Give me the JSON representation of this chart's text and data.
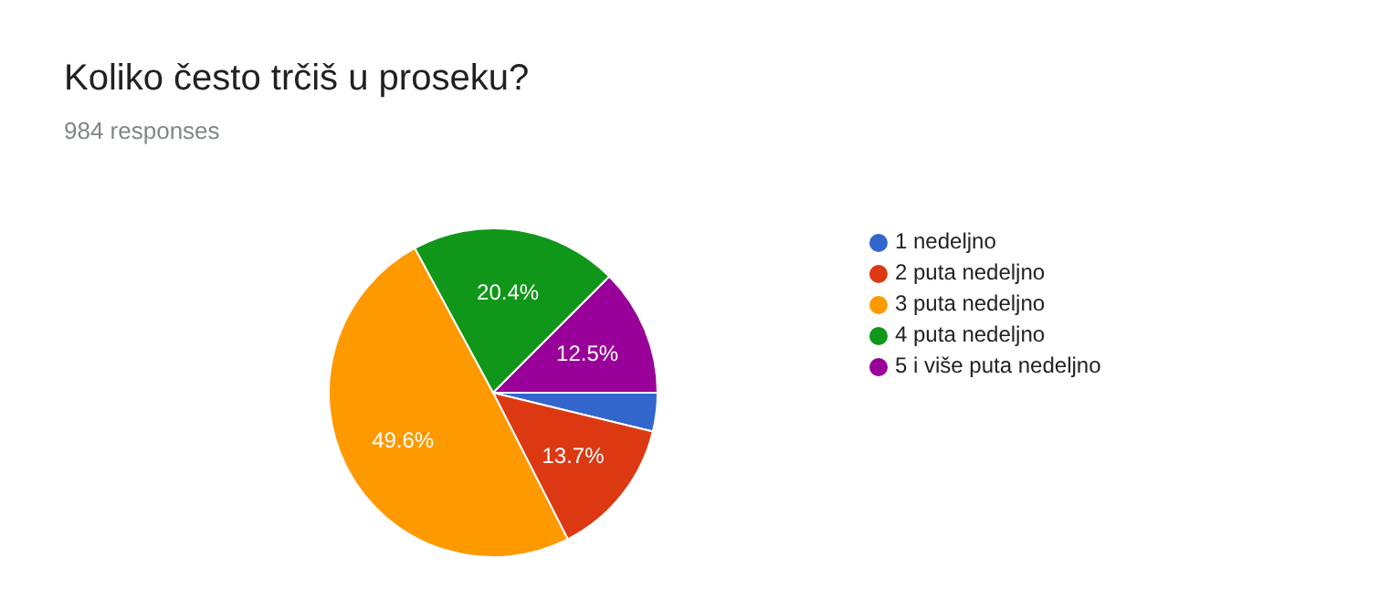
{
  "chart_data": {
    "type": "pie",
    "title": "Koliko često trčiš u proseku?",
    "subtitle": "984 responses",
    "categories": [
      "1 nedeljno",
      "2 puta nedeljno",
      "3 puta nedeljno",
      "4 puta nedeljno",
      "5 i više puta nedeljno"
    ],
    "values": [
      3.8,
      13.7,
      49.6,
      20.4,
      12.5
    ],
    "value_labels": [
      null,
      "13.7%",
      "49.6%",
      "20.4%",
      "12.5%"
    ],
    "colors": [
      "#3366cc",
      "#dc3912",
      "#ff9900",
      "#109618",
      "#990099"
    ],
    "legend": "right"
  }
}
